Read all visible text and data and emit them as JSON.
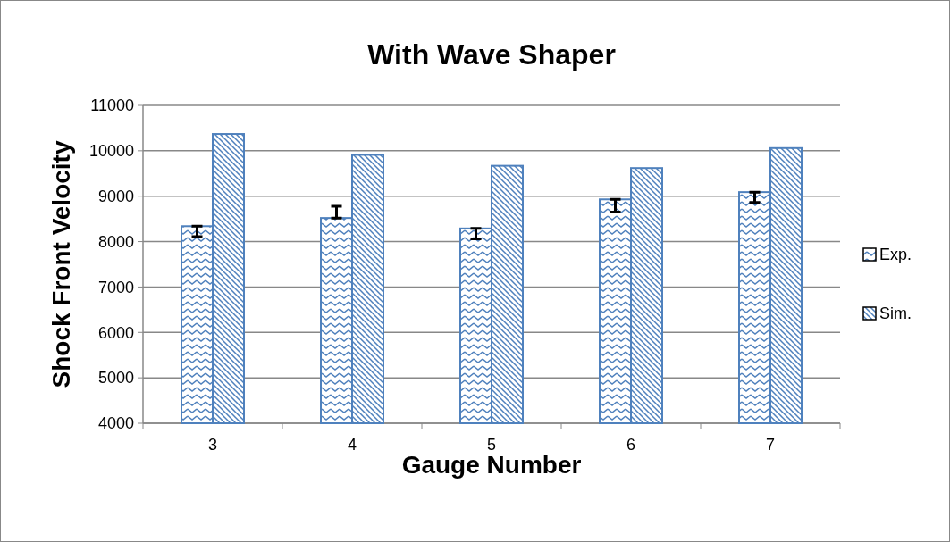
{
  "chart_data": {
    "type": "bar",
    "title": "With Wave Shaper",
    "xlabel": "Gauge Number",
    "ylabel": "Shock Front Velocity",
    "categories": [
      "3",
      "4",
      "5",
      "6",
      "7"
    ],
    "series": [
      {
        "name": "Exp.",
        "color": "#4f81bd",
        "values": [
          8340,
          8520,
          8290,
          8930,
          9090
        ],
        "errors": [
          [
            8110,
            8340
          ],
          [
            8520,
            8780
          ],
          [
            8060,
            8290
          ],
          [
            8650,
            8930
          ],
          [
            8860,
            9090
          ]
        ]
      },
      {
        "name": "Sim.",
        "color": "#4f81bd",
        "values": [
          10370,
          9910,
          9670,
          9620,
          10060
        ]
      }
    ],
    "ylim": [
      4000,
      11000
    ],
    "yticks": [
      4000,
      5000,
      6000,
      7000,
      8000,
      9000,
      10000,
      11000
    ],
    "grid": "y",
    "legend": "right"
  }
}
